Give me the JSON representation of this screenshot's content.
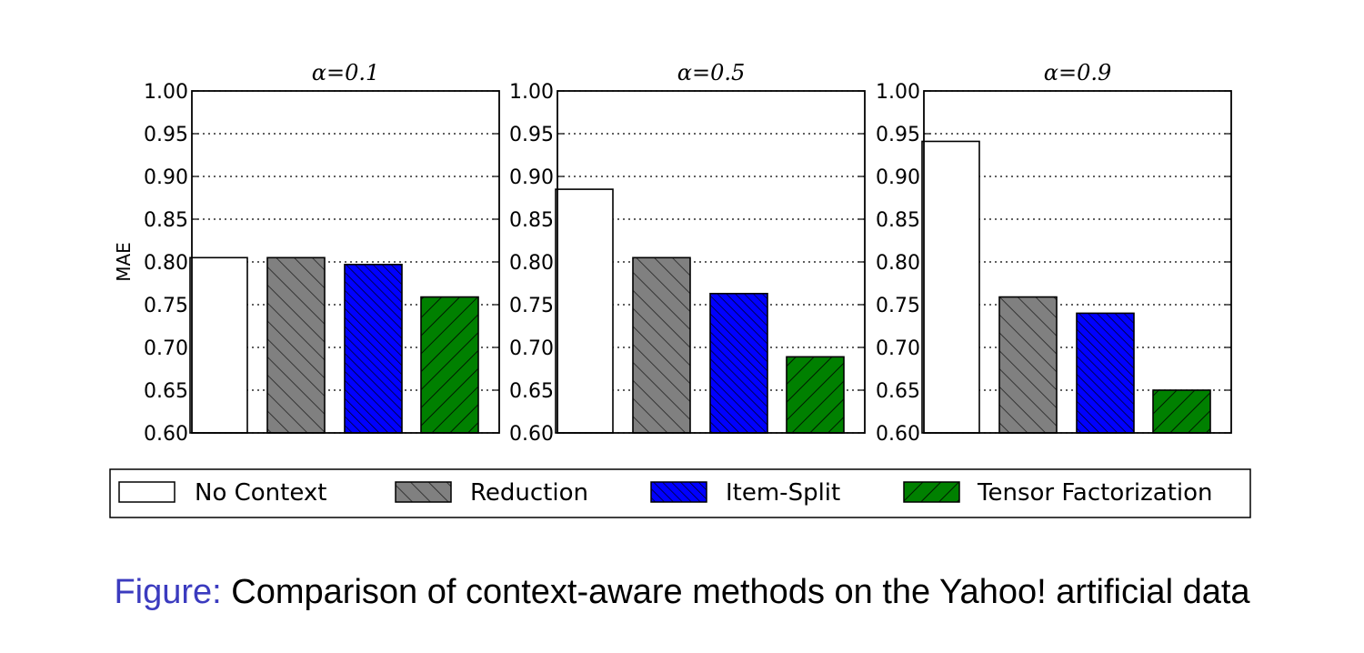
{
  "chart_data": {
    "type": "bar",
    "ylabel": "MAE",
    "ylim": [
      0.6,
      1.0
    ],
    "yticks": [
      "0.60",
      "0.65",
      "0.70",
      "0.75",
      "0.80",
      "0.85",
      "0.90",
      "0.95",
      "1.00"
    ],
    "grid": "horizontal-dotted",
    "legend_placement": "bottom",
    "series": [
      {
        "name": "No Context",
        "color": "#ffffff",
        "hatch": "none"
      },
      {
        "name": "Reduction",
        "color": "#808080",
        "hatch": "backslash"
      },
      {
        "name": "Item-Split",
        "color": "#0000ff",
        "hatch": "dense-backslash"
      },
      {
        "name": "Tensor Factorization",
        "color": "#008000",
        "hatch": "slash"
      }
    ],
    "panels": [
      {
        "title": "α=0.1",
        "values": [
          0.805,
          0.805,
          0.797,
          0.759
        ]
      },
      {
        "title": "α=0.5",
        "values": [
          0.885,
          0.805,
          0.763,
          0.689
        ]
      },
      {
        "title": "α=0.9",
        "values": [
          0.941,
          0.759,
          0.74,
          0.65
        ]
      }
    ]
  },
  "caption": {
    "prefix": "Figure:",
    "text": " Comparison of context-aware methods on the Yahoo! artificial data"
  }
}
